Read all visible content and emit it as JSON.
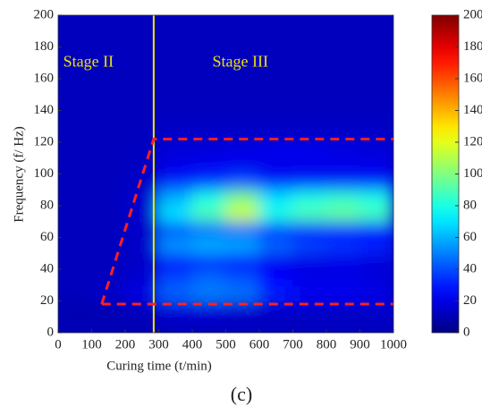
{
  "chart_data": {
    "type": "heatmap",
    "xlabel": "Curing time (t/min)",
    "ylabel": "Frequency (f/ Hz)",
    "caption": "(c)",
    "x": [
      50,
      150,
      250,
      350,
      450,
      550,
      650,
      750,
      850,
      950
    ],
    "y": [
      5,
      15,
      25,
      35,
      45,
      55,
      65,
      75,
      85,
      95,
      105,
      115,
      125,
      135,
      145,
      155,
      165,
      175,
      185,
      195
    ],
    "values": [
      [
        10,
        10,
        10,
        12,
        12,
        12,
        12,
        12,
        12,
        12
      ],
      [
        10,
        10,
        12,
        18,
        18,
        16,
        15,
        15,
        15,
        15
      ],
      [
        12,
        14,
        20,
        45,
        50,
        48,
        30,
        22,
        22,
        20
      ],
      [
        12,
        12,
        16,
        38,
        45,
        40,
        25,
        20,
        20,
        18
      ],
      [
        12,
        12,
        14,
        28,
        30,
        28,
        22,
        20,
        20,
        18
      ],
      [
        12,
        12,
        15,
        55,
        60,
        58,
        45,
        38,
        35,
        32
      ],
      [
        12,
        12,
        14,
        40,
        45,
        45,
        35,
        30,
        30,
        28
      ],
      [
        12,
        12,
        15,
        70,
        90,
        115,
        80,
        90,
        95,
        88
      ],
      [
        12,
        12,
        15,
        60,
        80,
        100,
        70,
        80,
        85,
        80
      ],
      [
        12,
        12,
        14,
        30,
        35,
        40,
        30,
        32,
        32,
        30
      ],
      [
        12,
        12,
        13,
        20,
        22,
        22,
        20,
        20,
        20,
        20
      ],
      [
        12,
        12,
        13,
        18,
        18,
        20,
        22,
        22,
        20,
        18
      ],
      [
        12,
        12,
        12,
        14,
        14,
        14,
        14,
        14,
        14,
        14
      ],
      [
        12,
        12,
        12,
        13,
        13,
        13,
        13,
        13,
        13,
        13
      ],
      [
        12,
        12,
        12,
        12,
        12,
        12,
        12,
        12,
        12,
        12
      ],
      [
        12,
        12,
        12,
        12,
        12,
        12,
        12,
        12,
        12,
        12
      ],
      [
        12,
        12,
        12,
        12,
        12,
        12,
        12,
        12,
        12,
        12
      ],
      [
        12,
        12,
        12,
        12,
        12,
        12,
        12,
        12,
        12,
        12
      ],
      [
        12,
        12,
        12,
        12,
        12,
        12,
        12,
        12,
        12,
        12
      ],
      [
        12,
        12,
        12,
        12,
        12,
        12,
        12,
        12,
        12,
        12
      ]
    ],
    "colormap": "jet",
    "clim": [
      0,
      200
    ],
    "cticks": [
      0,
      20,
      40,
      60,
      80,
      100,
      120,
      140,
      160,
      180,
      200
    ],
    "xlim": [
      0,
      1000
    ],
    "xticks": [
      0,
      100,
      200,
      300,
      400,
      500,
      600,
      700,
      800,
      900,
      1000
    ],
    "ylim": [
      0,
      200
    ],
    "yticks": [
      0,
      20,
      40,
      60,
      80,
      100,
      120,
      140,
      160,
      180,
      200
    ],
    "stage_boundary": {
      "x": 285,
      "color": "#f5e600"
    },
    "region": {
      "x": [
        130,
        285,
        1000
      ],
      "y": [
        18,
        122,
        122
      ],
      "x_low": [
        130,
        1000
      ],
      "y_low": [
        18,
        18
      ],
      "color": "#ff2020"
    },
    "annotations": [
      {
        "text": "Stage II",
        "x": 15,
        "y": 170
      },
      {
        "text": "Stage III",
        "x": 460,
        "y": 170
      }
    ]
  }
}
